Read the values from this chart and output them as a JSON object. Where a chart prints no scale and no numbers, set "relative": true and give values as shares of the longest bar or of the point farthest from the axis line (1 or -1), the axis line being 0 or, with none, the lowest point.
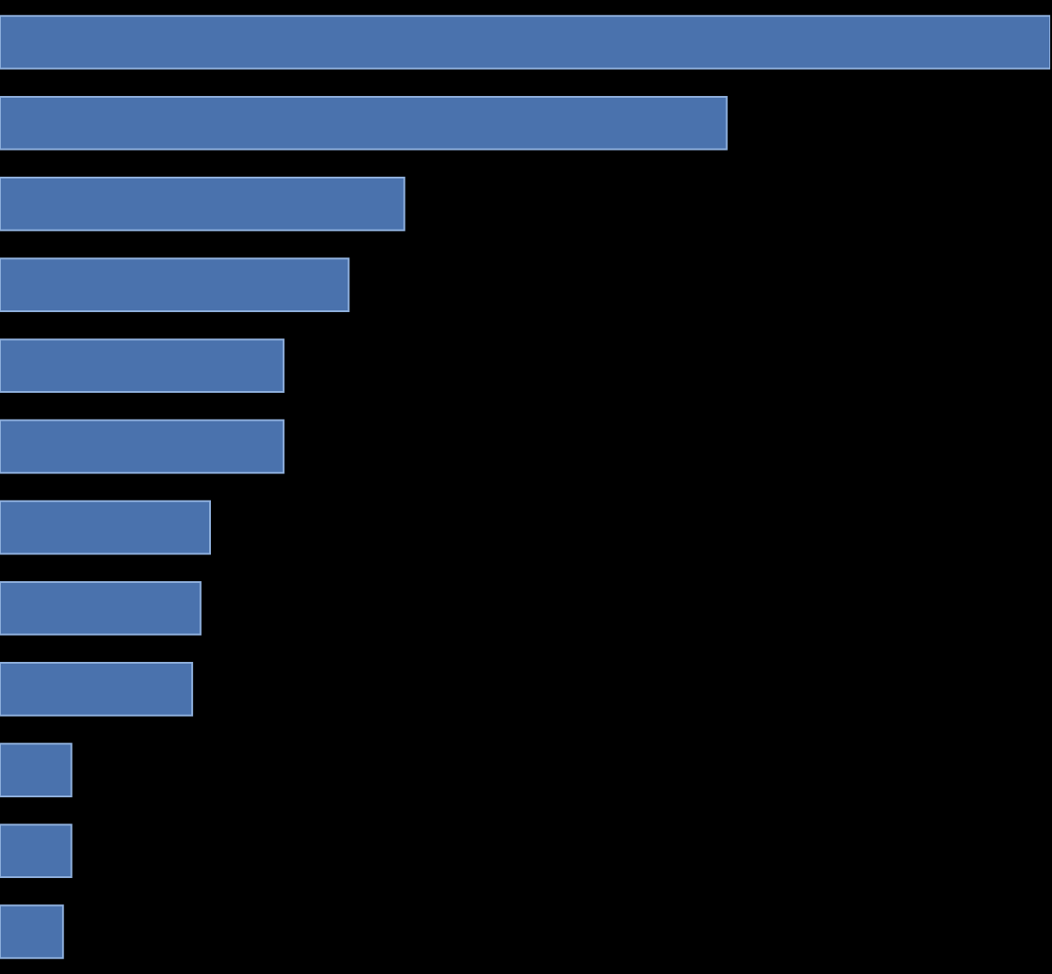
{
  "chart_data": {
    "type": "bar",
    "orientation": "horizontal",
    "relative": true,
    "categories": [
      null,
      null,
      null,
      null,
      null,
      null,
      null,
      null,
      null,
      null,
      null,
      null
    ],
    "values": [
      1,
      0.692,
      0.385,
      0.332,
      0.27,
      0.27,
      0.2,
      0.191,
      0.183,
      0.068,
      0.068,
      0.06
    ],
    "color": "#4a72ad"
  }
}
